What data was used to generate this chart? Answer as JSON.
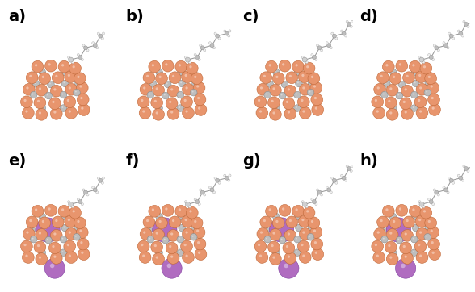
{
  "labels": [
    "a)",
    "b)",
    "c)",
    "d)",
    "e)",
    "f)",
    "g)",
    "h)"
  ],
  "label_fontsize": 14,
  "label_fontweight": "bold",
  "background_color": "#ffffff",
  "orange_color": "#E8956D",
  "orange_edge": "#C06838",
  "gray_color": "#BEBEBE",
  "gray_edge": "#8A8A8A",
  "white_color": "#F0F0F0",
  "white_edge": "#AAAAAA",
  "purple_color": "#B06CC0",
  "purple_edge": "#8040A0",
  "figure_width": 5.88,
  "figure_height": 3.62,
  "dpi": 100
}
